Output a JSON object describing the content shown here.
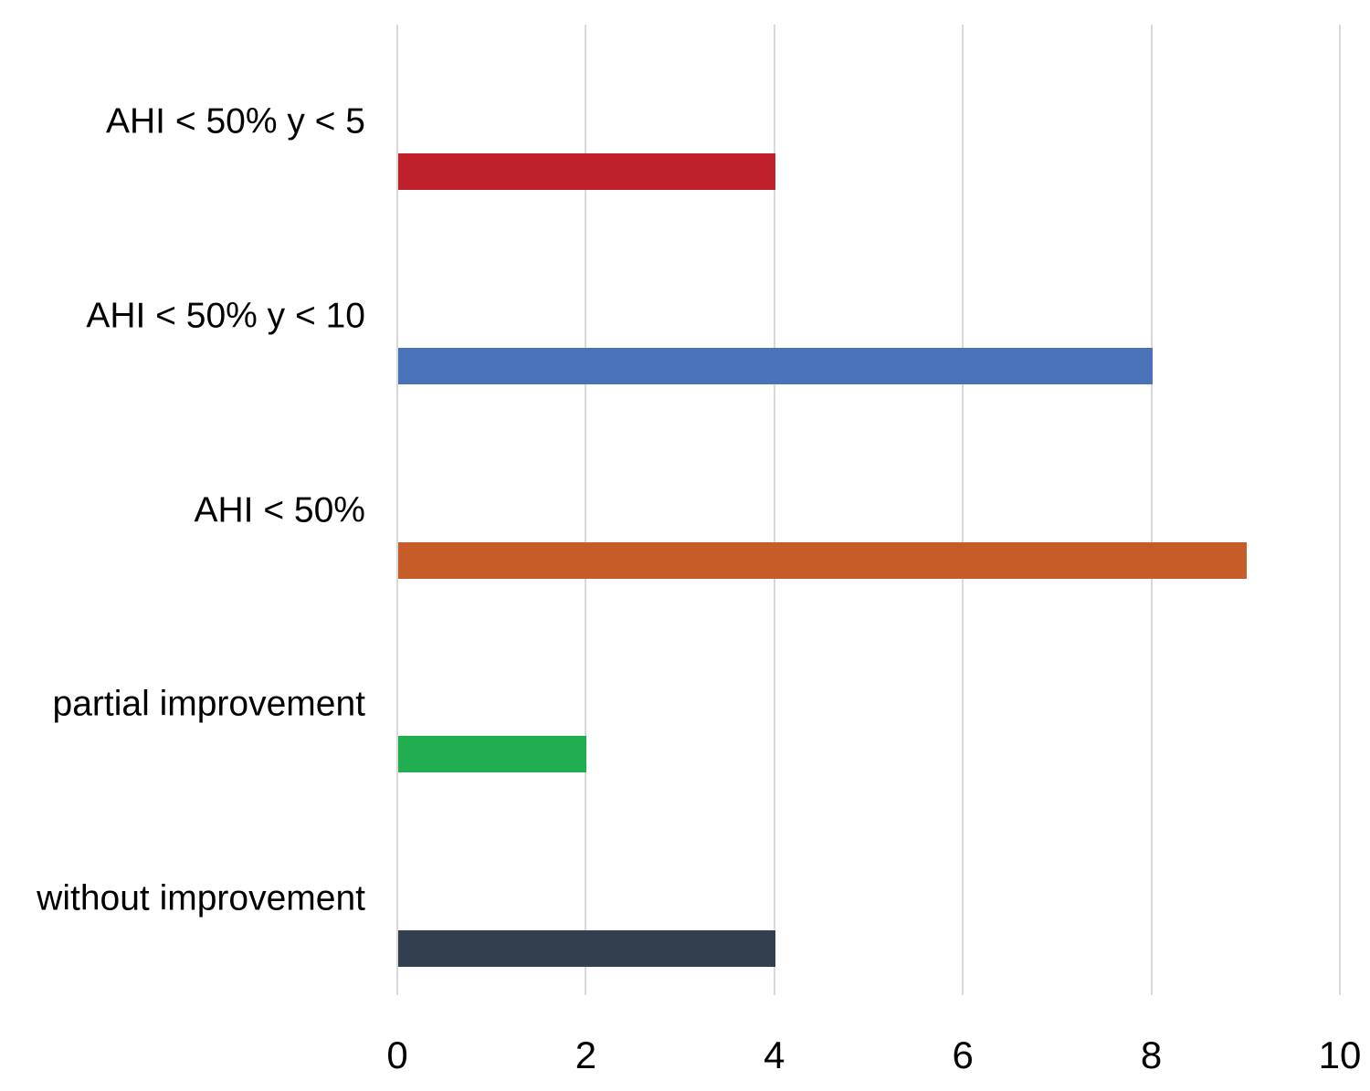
{
  "chart_data": {
    "type": "bar",
    "orientation": "horizontal",
    "title": "",
    "categories": [
      "AHI < 50% y < 5",
      "AHI < 50% y < 10",
      "AHI < 50%",
      "partial improvement",
      "without improvement"
    ],
    "values": [
      4,
      8,
      9,
      2,
      4
    ],
    "bar_colors": [
      "#c0202c",
      "#4a72b8",
      "#c65d28",
      "#21ae51",
      "#333e4f"
    ],
    "xlabel": "",
    "ylabel": "",
    "xlim": [
      0,
      10
    ],
    "x_ticks": [
      0,
      2,
      4,
      6,
      8,
      10
    ],
    "grid": "vertical",
    "gridline_color": "#d9d9d9",
    "text_color": "#000000",
    "background_color": "#ffffff",
    "legend": "none"
  }
}
